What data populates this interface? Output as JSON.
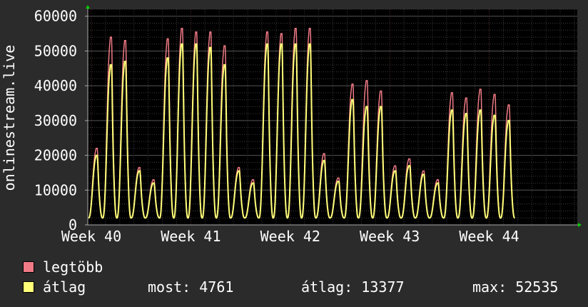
{
  "chart_data": {
    "type": "line",
    "ylabel": "onlinestream.live",
    "ylim": [
      0,
      62000
    ],
    "yticks": [
      0,
      10000,
      20000,
      30000,
      40000,
      50000,
      60000
    ],
    "ytick_labels": [
      "0",
      "10000",
      "20000",
      "30000",
      "40000",
      "50000",
      "60000"
    ],
    "x_range_days": [
      -0.25,
      34.2
    ],
    "xtick_days": [
      0,
      7,
      14,
      21,
      28,
      35
    ],
    "xtick_labels": [
      "Week 40",
      "Week 41",
      "Week 42",
      "Week 43",
      "Week 44"
    ],
    "grid": true,
    "colors": {
      "background": "#2b2b2b",
      "plot_area": "#000000",
      "grid": "#3c3c3c",
      "max_series": "#f07a85",
      "avg_series": "#ffff78",
      "axis": "#aaaaaa",
      "arrow": "#00cc00"
    },
    "series": [
      {
        "name": "legtöbb",
        "daily_peaks": [
          22000,
          54000,
          53000,
          16500,
          13000,
          53500,
          56500,
          55500,
          55500,
          51500,
          16500,
          13000,
          55500,
          55000,
          56500,
          56500,
          20500,
          13500,
          40500,
          41500,
          38500,
          17000,
          19000,
          15500,
          13000,
          38000,
          36500,
          39000,
          37500,
          34500
        ],
        "night_min": 2000
      },
      {
        "name": "átlag",
        "daily_peaks": [
          20000,
          46000,
          47000,
          15500,
          12000,
          48000,
          52000,
          52000,
          51000,
          46000,
          15500,
          12000,
          52000,
          52000,
          52000,
          52000,
          18500,
          12500,
          36000,
          34000,
          34000,
          15500,
          17000,
          14500,
          12000,
          33000,
          32000,
          33000,
          31500,
          30000
        ],
        "night_min": 2000
      }
    ]
  },
  "legend": {
    "max_label": "legtöbb",
    "avg_label": "átlag",
    "max_color": "#f07a85",
    "avg_color": "#ffff78"
  },
  "stats": {
    "current": "most: 4761",
    "average": "átlag: 13377",
    "maximum": "max: 52535"
  }
}
